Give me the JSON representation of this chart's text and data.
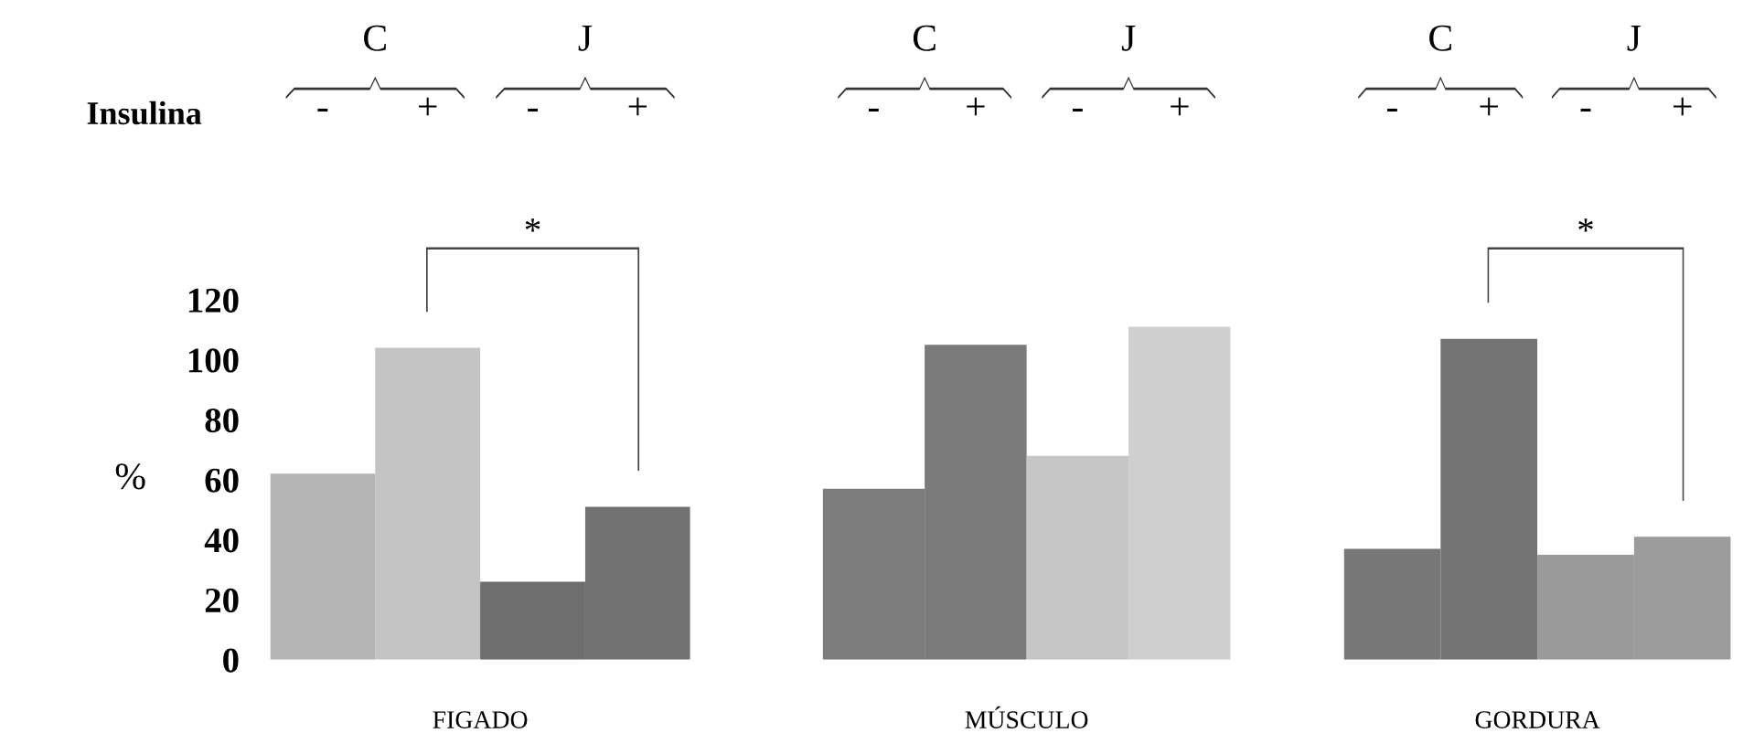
{
  "chart_data": [
    {
      "type": "bar",
      "xlabel": "FIGADO",
      "ylabel": "%",
      "categories": [
        "-",
        "+",
        "-",
        "+"
      ],
      "values": [
        62,
        104,
        26,
        51
      ],
      "colors": [
        "#b4b4b4",
        "#c4c4c4",
        "#6e6e6e",
        "#727272"
      ],
      "ylim": [
        0,
        120
      ],
      "yticks": [
        0,
        20,
        40,
        60,
        80,
        100,
        120
      ],
      "annotations": [
        "C",
        "J",
        "*",
        "Insulina"
      ]
    },
    {
      "type": "bar",
      "xlabel": "MÚSCULO",
      "categories": [
        "-",
        "+",
        "-",
        "+"
      ],
      "values": [
        57,
        105,
        68,
        111
      ],
      "colors": [
        "#7c7c7c",
        "#7a7a7a",
        "#c6c6c6",
        "#cfcfcf"
      ],
      "ylim": [
        0,
        120
      ],
      "tick_labels": "x",
      "annotations": [
        "C",
        "J"
      ]
    },
    {
      "type": "bar",
      "xlabel": "GORDURA",
      "categories": [
        "-",
        "+",
        "-",
        "+"
      ],
      "values": [
        37,
        107,
        35,
        41
      ],
      "colors": [
        "#777777",
        "#737373",
        "#9a9a9a",
        "#9c9c9c"
      ],
      "ylim": [
        0,
        120
      ],
      "tick_labels": "x",
      "annotations": [
        "C",
        "J",
        "*"
      ]
    }
  ]
}
